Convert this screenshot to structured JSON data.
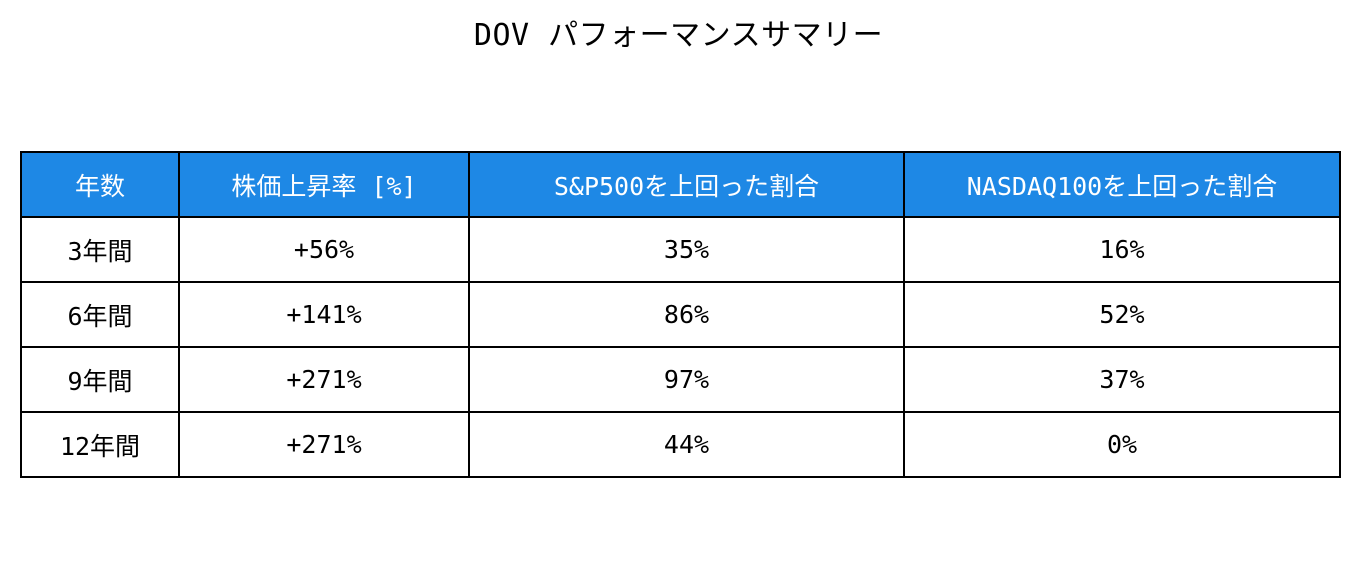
{
  "chart_data": {
    "type": "table",
    "title": "DOV パフォーマンスサマリー",
    "columns": [
      "年数",
      "株価上昇率 [%]",
      "S&P500を上回った割合",
      "NASDAQ100を上回った割合"
    ],
    "rows": [
      [
        "3年間",
        "+56%",
        "35%",
        "16%"
      ],
      [
        "6年間",
        "+141%",
        "86%",
        "52%"
      ],
      [
        "9年間",
        "+271%",
        "97%",
        "37%"
      ],
      [
        "12年間",
        "+271%",
        "44%",
        "0%"
      ]
    ],
    "header_color": "#1e88e5",
    "header_text_color": "#ffffff",
    "border_color": "#000000"
  }
}
